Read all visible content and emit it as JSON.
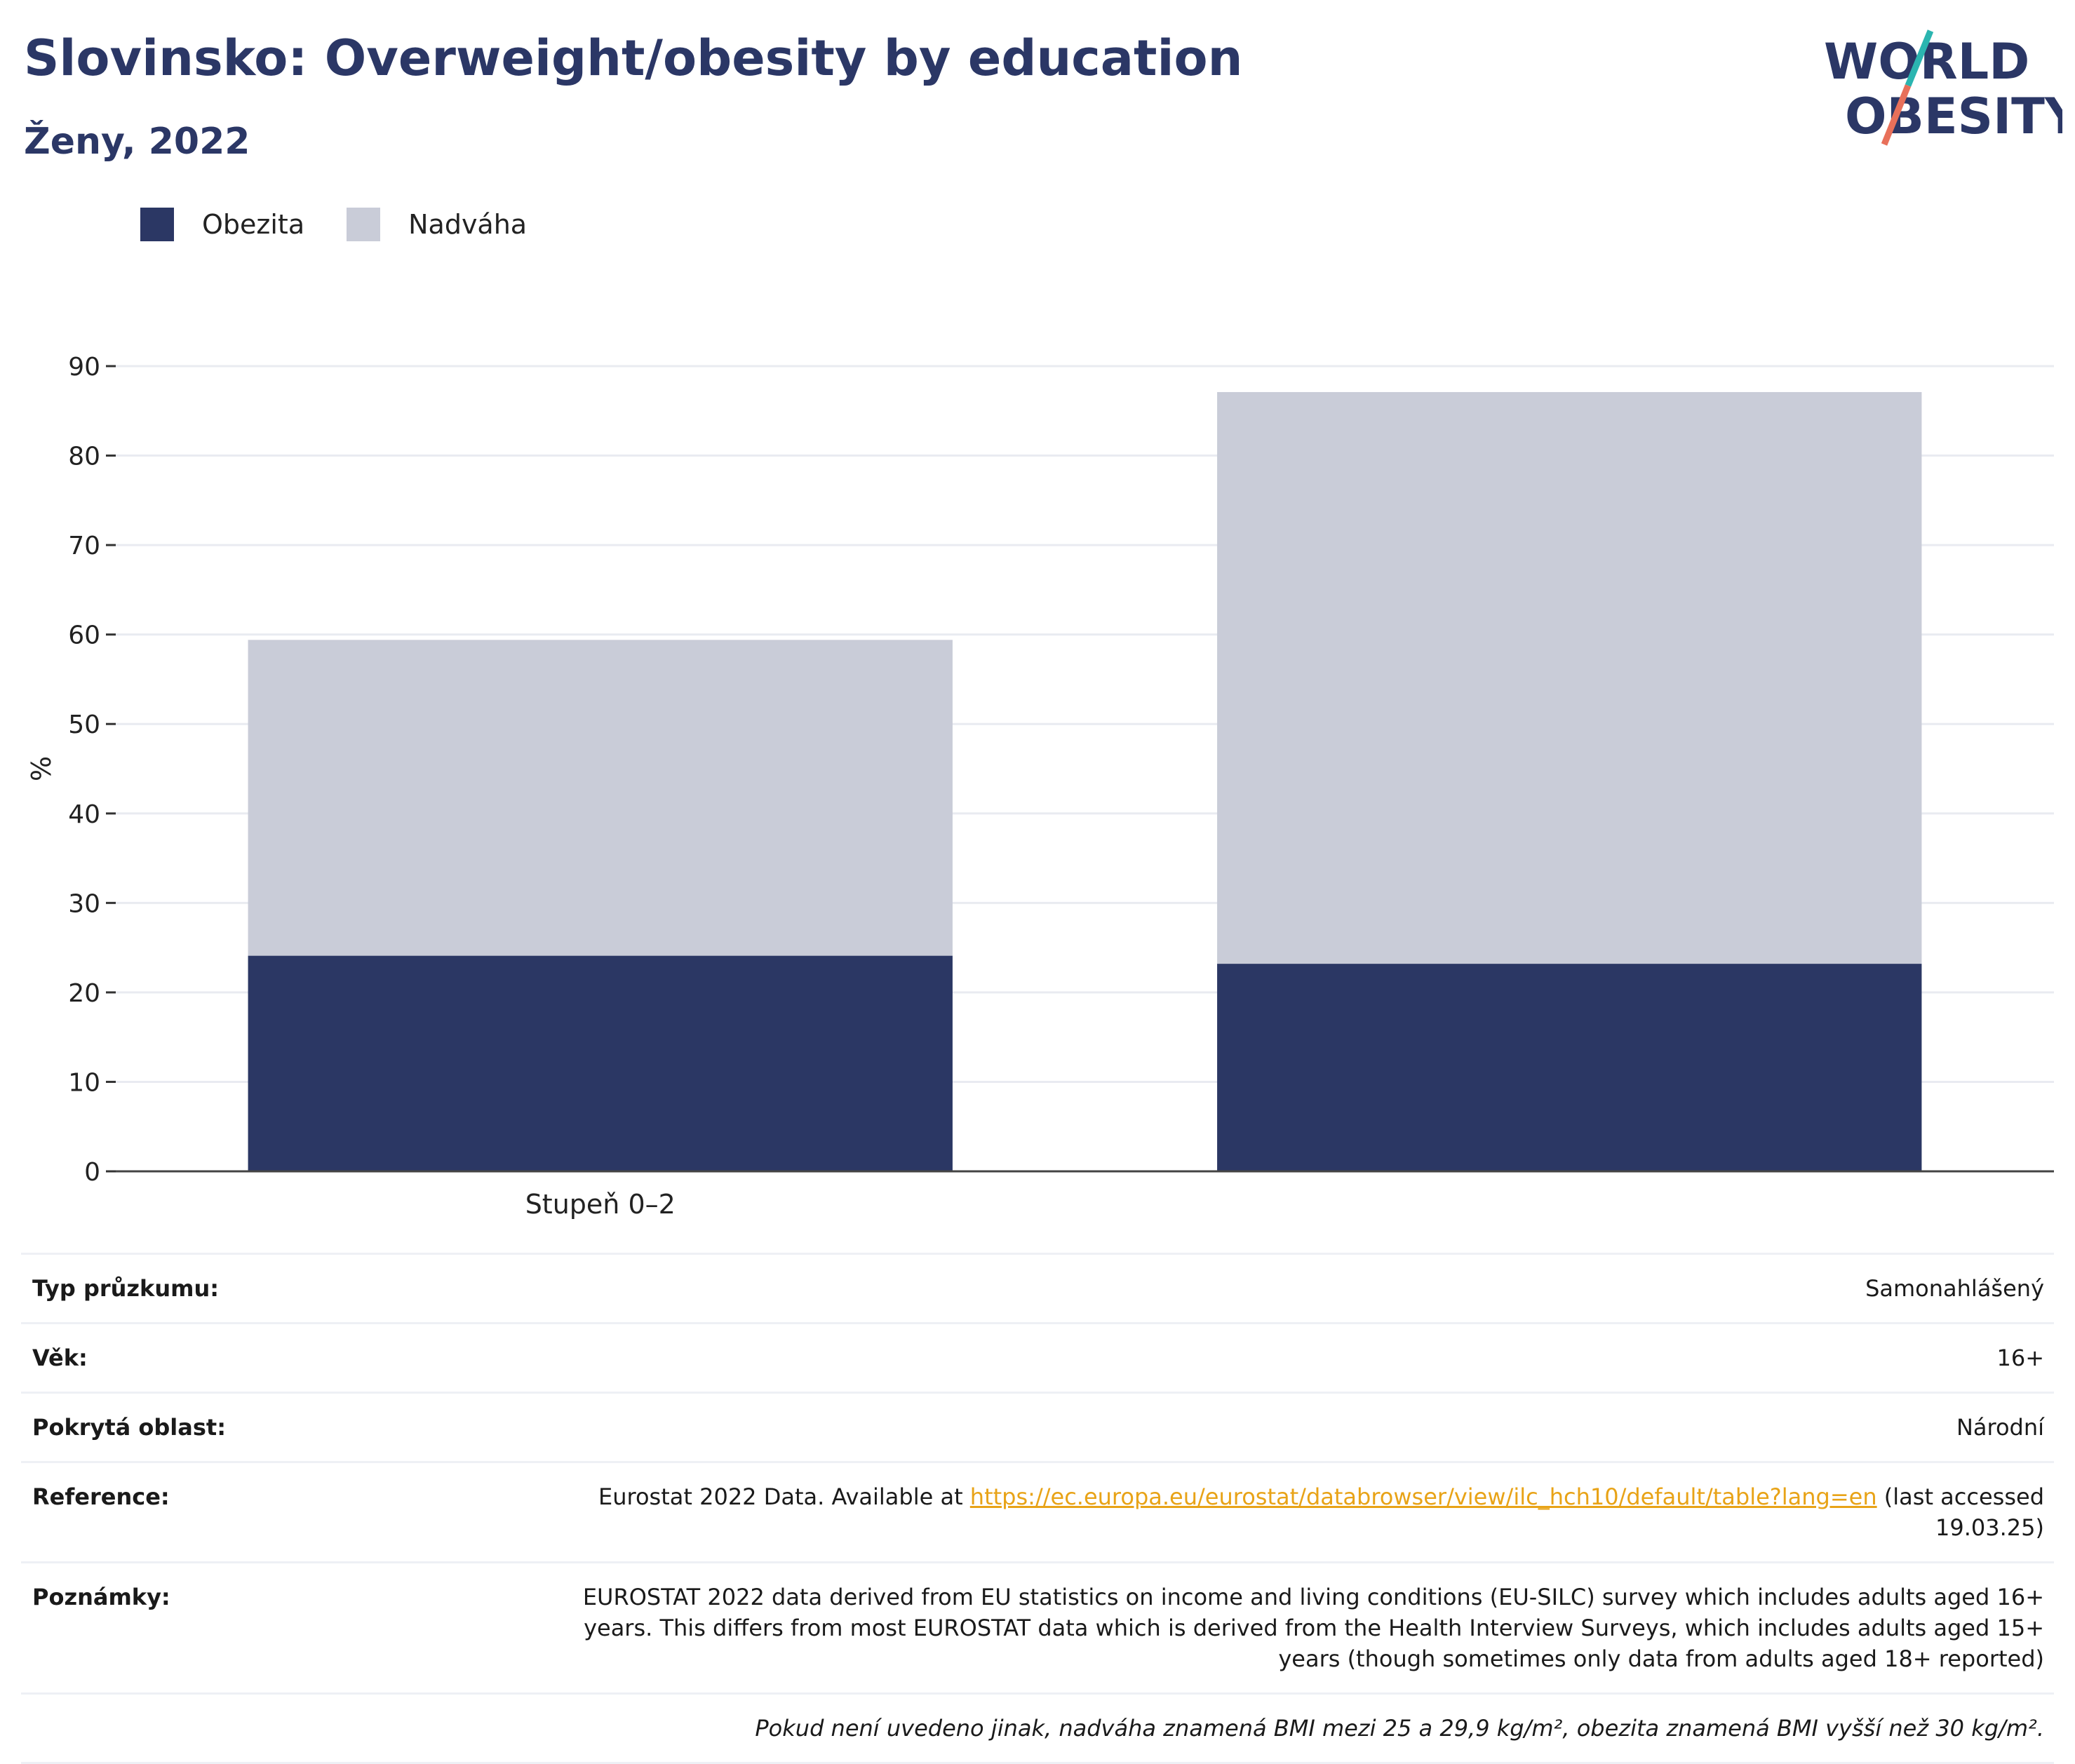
{
  "header": {
    "title": "Slovinsko: Overweight/obesity by education",
    "subtitle": "Ženy, 2022"
  },
  "logo": {
    "line1": "WORLD",
    "line2": "OBESITY"
  },
  "colors": {
    "obesity": "#2b3764",
    "overweight": "#c9ccd8",
    "title": "#2b3766",
    "link": "#e8a317",
    "logo_teal": "#2bb5b0",
    "logo_coral": "#e8705a"
  },
  "legend": [
    {
      "label": "Obezita",
      "color": "#2b3764"
    },
    {
      "label": "Nadváha",
      "color": "#c9ccd8"
    }
  ],
  "chart_data": {
    "type": "bar",
    "stacked": true,
    "categories": [
      "Stupeň 0–2",
      ""
    ],
    "series": [
      {
        "name": "Obezita",
        "values": [
          24.1,
          23.2
        ],
        "color": "#2b3764"
      },
      {
        "name": "Nadváha",
        "values": [
          35.3,
          63.9
        ],
        "color": "#c9ccd8"
      }
    ],
    "ylabel": "%",
    "ylim": [
      0,
      90
    ],
    "yticks": [
      0,
      10,
      20,
      30,
      40,
      50,
      60,
      70,
      80,
      90
    ],
    "grid": true,
    "legend_position": "top-left"
  },
  "info": {
    "survey_type": {
      "label": "Typ průzkumu:",
      "value": "Samonahlášený"
    },
    "age": {
      "label": "Věk:",
      "value": "16+"
    },
    "area": {
      "label": "Pokrytá oblast:",
      "value": "Národní"
    },
    "reference": {
      "label": "Reference:",
      "prefix": "Eurostat 2022 Data. Available at ",
      "link": "https://ec.europa.eu/eurostat/databrowser/view/ilc_hch10/default/table?lang=en",
      "suffix": " (last accessed 19.03.25)"
    },
    "notes": {
      "label": "Poznámky:",
      "value": "EUROSTAT 2022 data derived from EU statistics on income and living conditions (EU-SILC) survey which includes adults aged 16+ years. This differs from most EUROSTAT data which is derived from the Health Interview Surveys, which includes adults aged 15+ years (though sometimes only data from adults aged 18+ reported)"
    },
    "footnote": "Pokud není uvedeno jinak, nadváha znamená BMI mezi 25 a 29,9 kg/m², obezita znamená BMI vyšší než 30 kg/m²."
  }
}
